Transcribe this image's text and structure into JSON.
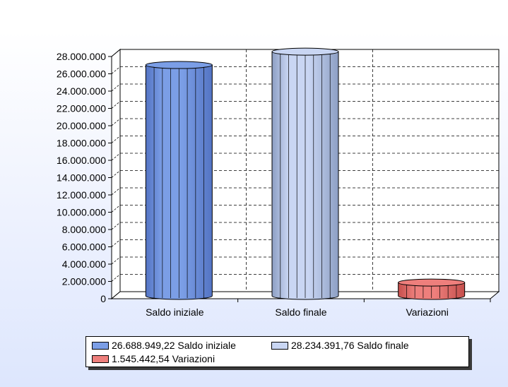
{
  "chart_data": {
    "type": "bar",
    "style": "3d-cylinder",
    "categories": [
      "Saldo iniziale",
      "Saldo finale",
      "Variazioni"
    ],
    "values": [
      26688949.22,
      28234391.76,
      1545442.54
    ],
    "ylim": [
      0,
      28000000
    ],
    "yticks": [
      "0",
      "2.000.000",
      "4.000.000",
      "6.000.000",
      "8.000.000",
      "10.000.000",
      "12.000.000",
      "14.000.000",
      "16.000.000",
      "18.000.000",
      "20.000.000",
      "22.000.000",
      "24.000.000",
      "26.000.000",
      "28.000.000"
    ],
    "grid": true,
    "title": "",
    "xlabel": "",
    "ylabel": "",
    "colors": [
      "#7b9ee6",
      "#c9d6f3",
      "#ee7f7c"
    ],
    "dark_colors": [
      "#5474c4",
      "#8d9fc4",
      "#c54f4c"
    ],
    "legend_position": "bottom",
    "legend": [
      {
        "label": "26.688.949,22 Saldo iniziale",
        "color": "#7b9ee6"
      },
      {
        "label": "28.234.391,76 Saldo finale",
        "color": "#c9d6f3"
      },
      {
        "label": "1.545.442,54 Variazioni",
        "color": "#ee7f7c"
      }
    ]
  }
}
